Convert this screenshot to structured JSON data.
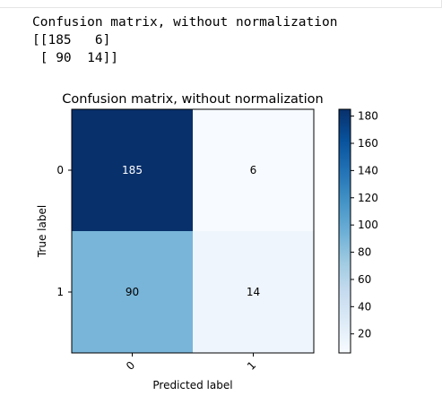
{
  "output_text": {
    "line1": "Confusion matrix, without normalization",
    "line2": "[[185   6]",
    "line3": " [ 90  14]]"
  },
  "colors": {
    "cmap": "Blues",
    "text_dark": "#000000",
    "text_light": "#ffffff"
  },
  "chart_data": {
    "type": "heatmap",
    "title": "Confusion matrix, without normalization",
    "xlabel": "Predicted label",
    "ylabel": "True label",
    "x_categories": [
      "0",
      "1"
    ],
    "y_categories": [
      "0",
      "1"
    ],
    "matrix": [
      [
        185,
        6
      ],
      [
        90,
        14
      ]
    ],
    "value_labels": [
      [
        "185",
        "6"
      ],
      [
        "90",
        "14"
      ]
    ],
    "colorbar": {
      "range": [
        6,
        185
      ],
      "ticks": [
        20,
        40,
        60,
        80,
        100,
        120,
        140,
        160,
        180
      ],
      "tick_labels": [
        "20",
        "40",
        "60",
        "80",
        "100",
        "120",
        "140",
        "160",
        "180"
      ]
    },
    "grid": false
  }
}
